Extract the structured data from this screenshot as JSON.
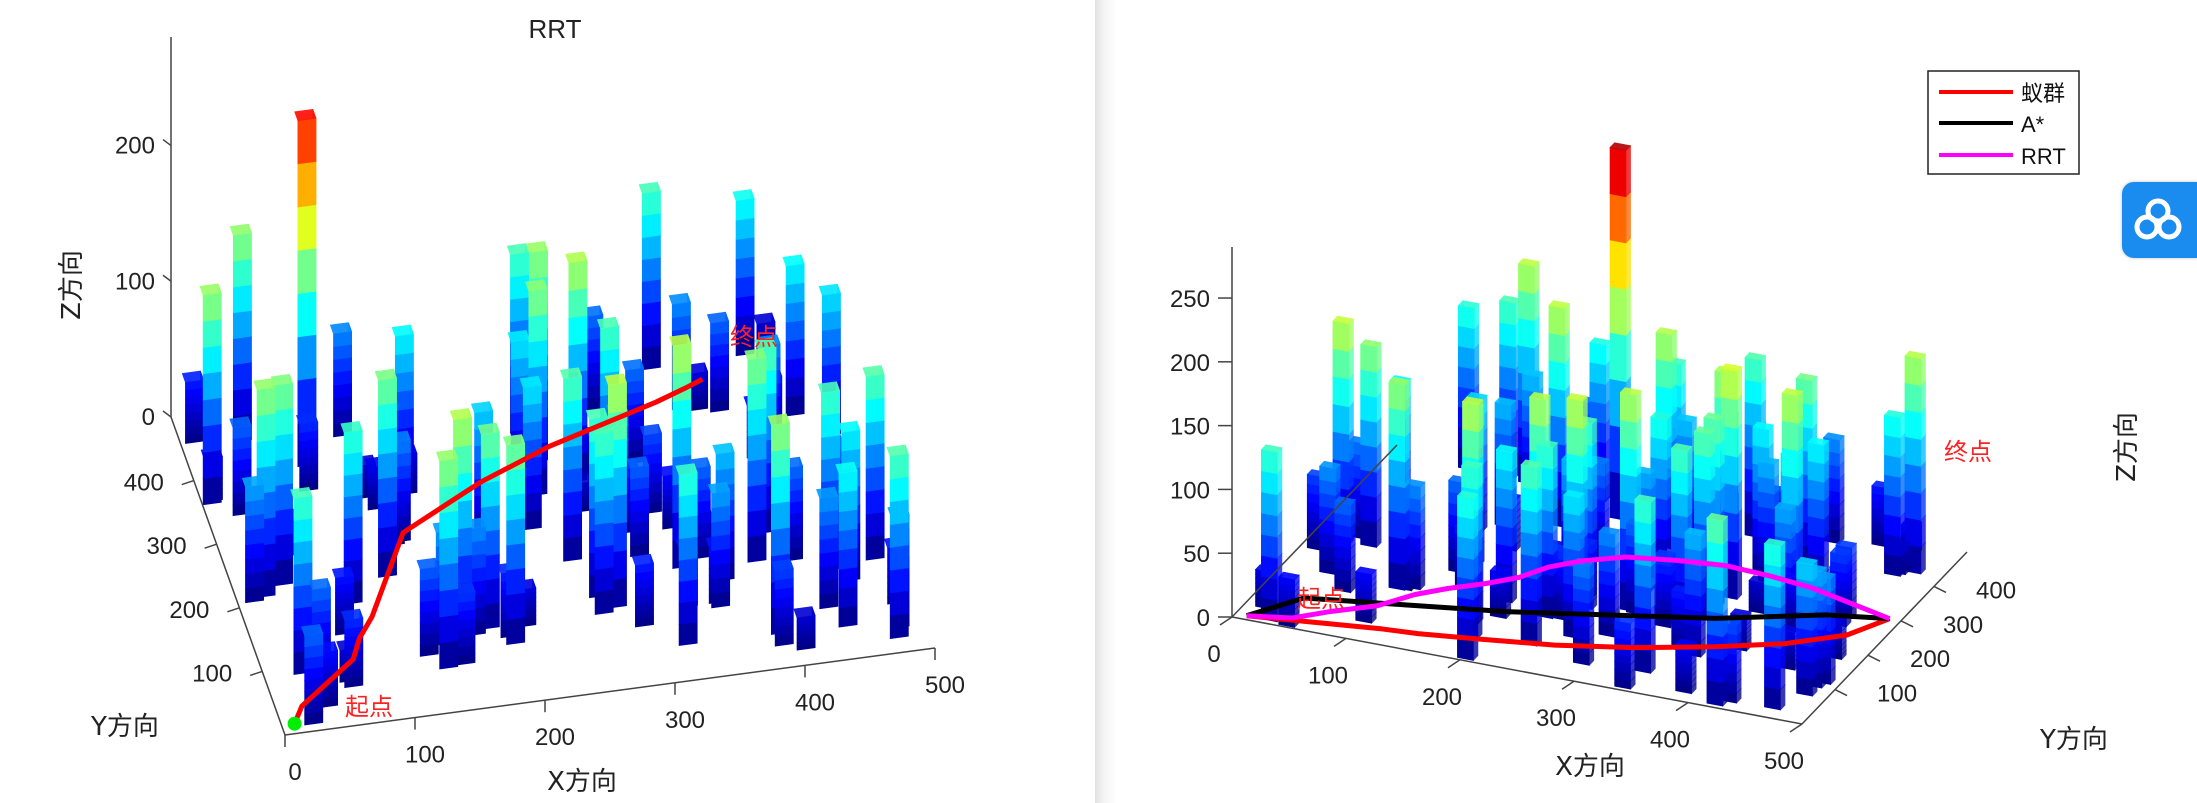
{
  "left_panel": {
    "chart_data": {
      "type": "bar3d",
      "title": "RRT",
      "xlabel": "X方向",
      "ylabel": "Y方向",
      "zlabel": "Z方向",
      "xlim": [
        0,
        500
      ],
      "ylim": [
        0,
        500
      ],
      "zlim": [
        0,
        280
      ],
      "x_ticks": [
        "0",
        "100",
        "200",
        "300",
        "400",
        "500"
      ],
      "y_ticks": [
        "100",
        "200",
        "300",
        "400"
      ],
      "z_ticks": [
        "0",
        "100",
        "200"
      ],
      "paths": [
        {
          "key": "rrt",
          "color": "#ff0000",
          "points": [
            [
              10,
              15,
              0
            ],
            [
              20,
              40,
              0
            ],
            [
              45,
              70,
              0
            ],
            [
              70,
              100,
              0
            ],
            [
              80,
              130,
              0
            ],
            [
              95,
              160,
              0
            ],
            [
              110,
              200,
              0
            ],
            [
              125,
              240,
              0
            ],
            [
              140,
              280,
              0
            ],
            [
              175,
              310,
              0
            ],
            [
              210,
              340,
              0
            ],
            [
              240,
              360,
              0
            ],
            [
              270,
              380,
              0
            ],
            [
              300,
              395,
              0
            ],
            [
              330,
              410,
              0
            ],
            [
              360,
              425,
              0
            ],
            [
              385,
              440,
              0
            ],
            [
              400,
              450,
              0
            ]
          ]
        }
      ],
      "start_label": "起点",
      "goal_label": "终点",
      "start_marker_color": "#00ee00"
    }
  },
  "right_panel": {
    "chart_data": {
      "type": "bar3d",
      "title": "",
      "xlabel": "X方向",
      "ylabel": "Y方向",
      "zlabel": "Z方向",
      "xlim": [
        0,
        500
      ],
      "ylim": [
        0,
        500
      ],
      "zlim": [
        0,
        290
      ],
      "x_ticks": [
        "0",
        "100",
        "200",
        "300",
        "400",
        "500"
      ],
      "y_ticks": [
        "100",
        "200",
        "300",
        "400"
      ],
      "z_ticks": [
        "0",
        "50",
        "100",
        "150",
        "200",
        "250"
      ],
      "legend_position": "top-right",
      "legend": [
        {
          "label": "蚁群",
          "color": "#ff0000"
        },
        {
          "label": "A*",
          "color": "#000000"
        },
        {
          "label": "RRT",
          "color": "#ff00ff"
        }
      ],
      "paths": [
        {
          "key": "ant",
          "color": "#ff0000",
          "points": [
            [
              10,
              10,
              0
            ],
            [
              120,
              40,
              0
            ],
            [
              150,
              45,
              0
            ],
            [
              200,
              60,
              0
            ],
            [
              260,
              80,
              0
            ],
            [
              320,
              110,
              0
            ],
            [
              380,
              150,
              0
            ],
            [
              430,
              190,
              0
            ],
            [
              470,
              240,
              0
            ],
            [
              490,
              300,
              0
            ]
          ]
        },
        {
          "key": "astar",
          "color": "#000000",
          "points": [
            [
              10,
              10,
              0
            ],
            [
              40,
              80,
              0
            ],
            [
              120,
              110,
              0
            ],
            [
              200,
              140,
              0
            ],
            [
              280,
              180,
              0
            ],
            [
              360,
              220,
              0
            ],
            [
              440,
              280,
              0
            ],
            [
              490,
              300,
              0
            ]
          ]
        },
        {
          "key": "rrt",
          "color": "#ff00ff",
          "points": [
            [
              10,
              10,
              0
            ],
            [
              45,
              25,
              0
            ],
            [
              70,
              60,
              0
            ],
            [
              100,
              95,
              0
            ],
            [
              120,
              140,
              0
            ],
            [
              140,
              170,
              0
            ],
            [
              165,
              200,
              0
            ],
            [
              185,
              230,
              0
            ],
            [
              200,
              270,
              0
            ],
            [
              220,
              300,
              0
            ],
            [
              250,
              330,
              0
            ],
            [
              290,
              345,
              0
            ],
            [
              330,
              355,
              0
            ],
            [
              370,
              350,
              0
            ],
            [
              410,
              340,
              0
            ],
            [
              450,
              320,
              0
            ],
            [
              490,
              300,
              0
            ]
          ]
        }
      ],
      "start_label": "起点",
      "goal_label": "终点"
    }
  }
}
